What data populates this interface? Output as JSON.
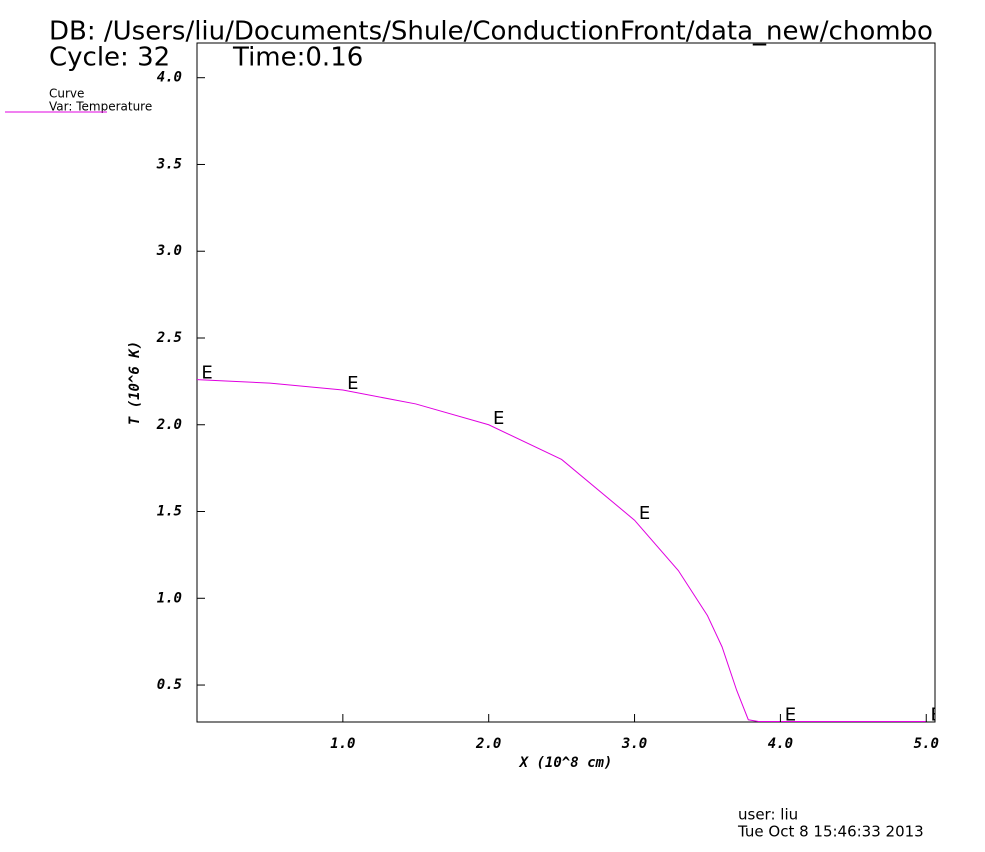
{
  "chart_data": {
    "type": "line",
    "title": "DB: /Users/liu/Documents/Shule/ConductionFront/data_new/chombo",
    "cycle": "Cycle: 32",
    "time": "Time:0.16",
    "legend_title": "Curve",
    "xlabel": "X (10^8 cm)",
    "ylabel": "T (10^6 K)",
    "user": "user: liu",
    "date": "Tue Oct  8 15:46:33 2013",
    "marker": "E",
    "x": [
      0,
      0.5,
      1,
      1.5,
      2,
      2.5,
      3,
      3.3,
      3.5,
      3.6,
      3.7,
      3.78,
      3.85,
      4,
      4.5,
      5
    ],
    "series": [
      {
        "name": "Var: Temperature",
        "color": "#e000e0",
        "values": [
          2.26,
          2.24,
          2.2,
          2.12,
          2.0,
          1.8,
          1.45,
          1.16,
          0.9,
          0.72,
          0.47,
          0.3,
          0.29,
          0.29,
          0.29,
          0.29
        ]
      }
    ],
    "xlim": [
      0,
      5.06
    ],
    "ylim": [
      0.287,
      4.2
    ],
    "xticks": [
      {
        "value": 1,
        "label": "1.0"
      },
      {
        "value": 2,
        "label": "2.0"
      },
      {
        "value": 3,
        "label": "3.0"
      },
      {
        "value": 4,
        "label": "4.0"
      },
      {
        "value": 5,
        "label": "5.0"
      }
    ],
    "yticks": [
      {
        "value": 0.5,
        "label": "0.5"
      },
      {
        "value": 1,
        "label": "1.0"
      },
      {
        "value": 1.5,
        "label": "1.5"
      },
      {
        "value": 2,
        "label": "2.0"
      },
      {
        "value": 2.5,
        "label": "2.5"
      },
      {
        "value": 3,
        "label": "3.0"
      },
      {
        "value": 3.5,
        "label": "3.5"
      },
      {
        "value": 4,
        "label": "4.0"
      }
    ]
  }
}
